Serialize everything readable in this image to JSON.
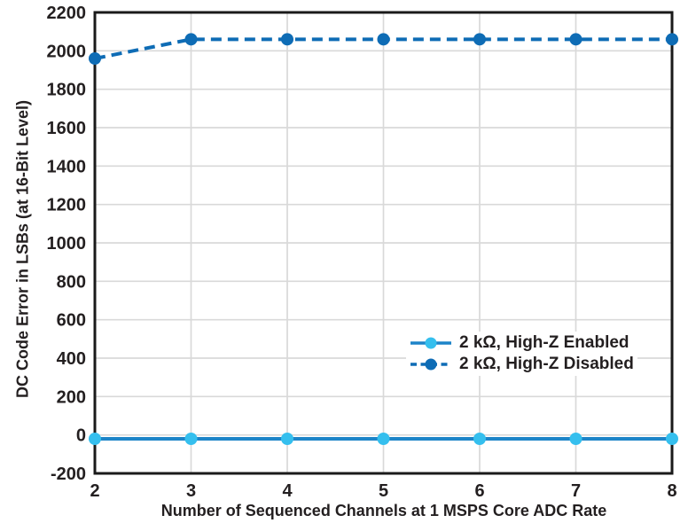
{
  "chart_data": {
    "type": "line",
    "title": "",
    "x": [
      2,
      3,
      4,
      5,
      6,
      7,
      8
    ],
    "series": [
      {
        "name": "2 kΩ, High-Z Enabled",
        "values": [
          -20,
          -20,
          -20,
          -20,
          -20,
          -20,
          -20
        ],
        "line_style": "solid",
        "line_color": "#1d84c8",
        "marker_color": "#35bfee"
      },
      {
        "name": "2 kΩ, High-Z Disabled",
        "values": [
          1960,
          2060,
          2060,
          2060,
          2060,
          2060,
          2060
        ],
        "line_style": "dashed",
        "line_color": "#0e6cb5",
        "marker_color": "#0e6cb5"
      }
    ],
    "xlabel": "Number of Sequenced Channels at 1 MSPS Core ADC Rate",
    "ylabel": "DC Code Error in LSBs (at 16-Bit Level)",
    "xlim": [
      2,
      8
    ],
    "ylim": [
      -200,
      2200
    ],
    "xticks": [
      2,
      3,
      4,
      5,
      6,
      7,
      8
    ],
    "yticks": [
      -200,
      0,
      200,
      400,
      600,
      800,
      1000,
      1200,
      1400,
      1600,
      1800,
      2000,
      2200
    ],
    "grid": true,
    "grid_color": "#d9d9d9",
    "axis_color": "#1a1a1a",
    "text_color": "#231f20",
    "legend_position": "inside-right"
  }
}
